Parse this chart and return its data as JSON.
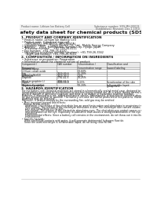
{
  "header_left": "Product name: Lithium Ion Battery Cell",
  "header_right_line1": "Substance number: SDS-MH-00019",
  "header_right_line2": "Established / Revision: Dec.1.2010",
  "title": "Safety data sheet for chemical products (SDS)",
  "section1_title": "1. PRODUCT AND COMPANY IDENTIFICATION",
  "section1_lines": [
    "• Product name: Lithium Ion Battery Cell",
    "• Product code: Cylindrical-type cell",
    "    (IHR18650U, IHR18650L, IHR18650A)",
    "• Company name:    Sanyo Electric Co., Ltd., Mobile Energy Company",
    "• Address:    2001, Kamikosaka, Sumoto-City, Hyogo, Japan",
    "• Telephone number:    +81-799-26-4111",
    "• Fax number:  +81-799-26-4120",
    "• Emergency telephone number (daytime): +81-799-26-3562",
    "    (Night and holiday): +81-799-26-3101"
  ],
  "section2_title": "2. COMPOSITION / INFORMATION ON INGREDIENTS",
  "section2_intro": "• Substance or preparation: Preparation",
  "section2_table_title": "• Information about the chemical nature of product:",
  "col_headers": [
    "Component / Component\n\nGeneral name",
    "CAS number",
    "Concentration /\nConcentration range\n(30-60%)",
    "Classification and\nhazard labeling"
  ],
  "table_rows": [
    [
      "Lithium cobalt oxide\n(LiMnxCoyNizO2)",
      "-",
      "30-60%",
      "-"
    ],
    [
      "Iron",
      "7439-89-6",
      "15-30%",
      "-"
    ],
    [
      "Aluminum",
      "7429-90-5",
      "2-5%",
      "-"
    ],
    [
      "Graphite\n(Bind in graphite L)\n(Artificial graphite)",
      "7782-42-5\n7782-42-5",
      "10-25%",
      "-"
    ],
    [
      "Copper",
      "7440-50-8",
      "5-15%",
      "Sensitization of the skin\ngroup No.2"
    ],
    [
      "Organic electrolyte",
      "-",
      "10-20%",
      "Inflammable liquid"
    ]
  ],
  "section3_title": "3. HAZARDS IDENTIFICATION",
  "section3_body": [
    "For the battery cell, chemical materials are stored in a hermetically sealed metal case, designed to withstand",
    "temperatures generated by electrochemical reaction during normal use. As a result, during normal use, there is no",
    "physical danger of ignition or explosion and there is no danger of hazardous material leakage.",
    "However, if exposed to a fire, added mechanical shocks, decomposed, or/and electro-chemical abuse, the case may",
    "be gas release vented (or opened). The battery cell case will not be protected of fire-patterns. Hazardous",
    "materials may be released.",
    "Moreover, if heated strongly by the surrounding fire, sold gas may be emitted.",
    "",
    "• Most important hazard and effects:",
    "  Human health effects:",
    "    Inhalation: The release of the electrolyte has an anesthesia action and stimulates in respiratory tract.",
    "    Skin contact: The release of the electrolyte stimulates a skin. The electrolyte skin contact causes a",
    "    sore and stimulation on the skin.",
    "    Eye contact: The release of the electrolyte stimulates eyes. The electrolyte eye contact causes a sore",
    "    and stimulation on the eye. Especially, a substance that causes a strong inflammation of the eye is",
    "    contained.",
    "    Environmental effects: Since a battery cell remains in the environment, do not throw out it into the",
    "    environment.",
    "",
    "• Specific hazards:",
    "   If the electrolyte contacts with water, it will generate detrimental hydrogen fluoride.",
    "   Since the used electrolyte is inflammable liquid, do not bring close to fire."
  ],
  "background_color": "#ffffff",
  "table_bg": "#e8e8e8",
  "line_color": "#999999",
  "text_color": "#111111",
  "gray_text": "#555555"
}
